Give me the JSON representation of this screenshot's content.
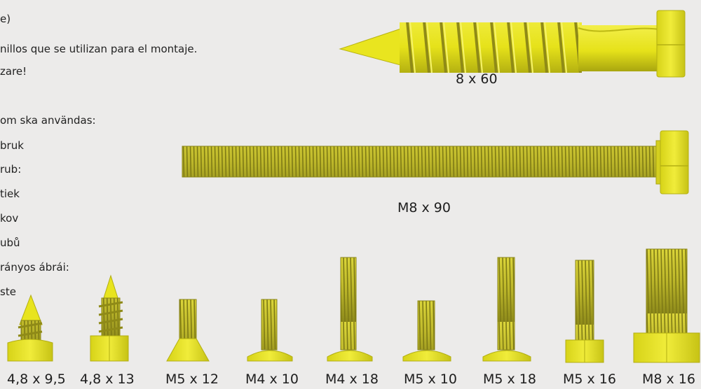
{
  "text_lines": [
    "e)",
    "nillos que se utilizan para el montaje.",
    "zare!",
    "om ska användas:",
    "bruk",
    "rub:",
    "tiek",
    "kov",
    "ubů",
    "rányos ábrái:",
    "ste"
  ],
  "screws": {
    "lag_screw_label": "8 x 60",
    "long_bolt_label": "M8 x 90",
    "small_labels": [
      "4,8 x 9,5",
      "4,8 x 13",
      "M5 x 12",
      "M4 x 10",
      "M4 x 18",
      "M5 x 10",
      "M5 x 18",
      "M5 x 16",
      "M8 x 16"
    ]
  },
  "colors": {
    "background": "#ecebea",
    "screw_yellow": "#e6e21a",
    "screw_shade": "#a9a60f",
    "thread_dark": "#8f8a17",
    "thread_light": "#c8c23a"
  }
}
